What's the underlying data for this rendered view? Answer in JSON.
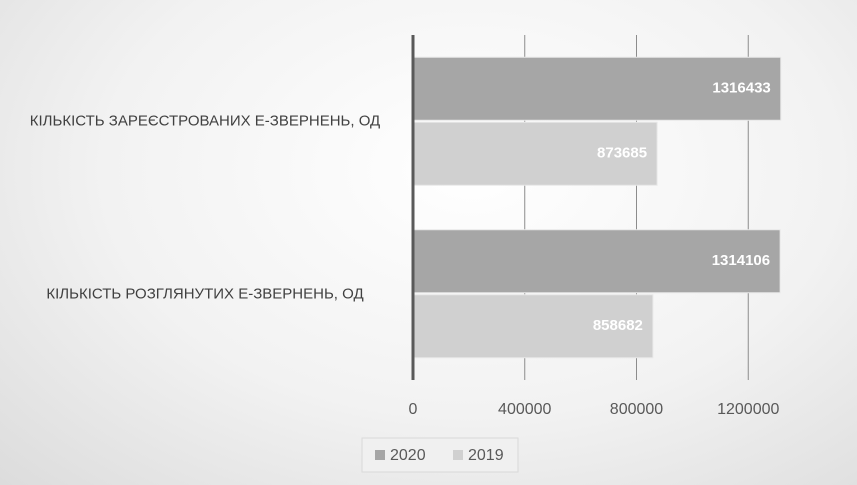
{
  "chart_data": {
    "type": "bar",
    "orientation": "horizontal",
    "categories": [
      "КІЛЬКІСТЬ ЗАРЕЄСТРОВАНИХ Е-ЗВЕРНЕНЬ, ОД",
      "КІЛЬКІСТЬ РОЗГЛЯНУТИХ Е-ЗВЕРНЕНЬ, ОД"
    ],
    "series": [
      {
        "name": "2020",
        "color": "#a6a6a6",
        "values": [
          1316433,
          1314106
        ]
      },
      {
        "name": "2019",
        "color": "#d0d0d0",
        "values": [
          873685,
          858682
        ]
      }
    ],
    "xlim": [
      0,
      1600000
    ],
    "xticks": [
      0,
      400000,
      800000,
      1200000
    ],
    "grid": true,
    "legend": "bottom"
  }
}
